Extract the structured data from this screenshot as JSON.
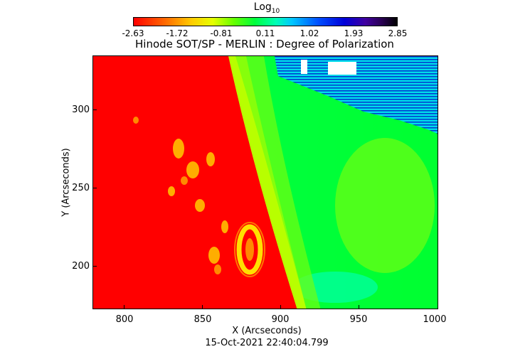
{
  "colorbar": {
    "title": "Log",
    "title_sub": "10",
    "ticks": [
      "-2.63",
      "-1.72",
      "-0.81",
      "0.11",
      "1.02",
      "1.93",
      "2.85"
    ]
  },
  "plot": {
    "title": "Hinode SOT/SP - MERLIN : Degree of Polarization",
    "xlabel": "X (Arcseconds)",
    "ylabel": "Y (Arcseconds)",
    "xticks": [
      "800",
      "850",
      "900",
      "950",
      "1000"
    ],
    "yticks": [
      "300",
      "250",
      "200"
    ],
    "timestamp": "15-Oct-2021 22:40:04.799"
  }
}
